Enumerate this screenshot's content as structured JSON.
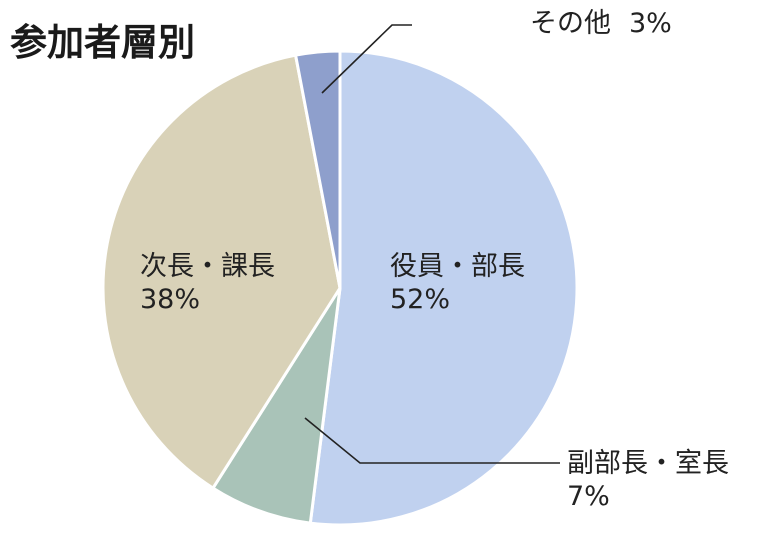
{
  "chart_data": {
    "type": "pie",
    "title": "参加者層別",
    "slices": [
      {
        "label": "役員・部長",
        "pct_label": "52%",
        "value": 52,
        "color": "#c0d1ef"
      },
      {
        "label": "副部長・室長",
        "pct_label": "7%",
        "value": 7,
        "color": "#a9c3b8"
      },
      {
        "label": "次長・課長",
        "pct_label": "38%",
        "value": 38,
        "color": "#d9d2b8"
      },
      {
        "label": "その他",
        "pct_label": "3%",
        "value": 3,
        "color": "#8e9fcc"
      }
    ],
    "start_angle_deg": 0,
    "direction": "clockwise"
  }
}
